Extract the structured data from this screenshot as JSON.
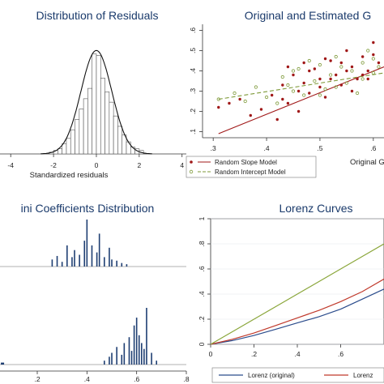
{
  "chart_data": [
    {
      "type": "bar",
      "title": "Distribution of Residuals",
      "xlabel": "Standardized residuals",
      "x_ticks": [
        "-4",
        "-2",
        "0",
        "2",
        "4"
      ],
      "xlim": [
        -4.5,
        4.2
      ],
      "bin_width": 0.2,
      "bin_centers": [
        -2.1,
        -1.9,
        -1.7,
        -1.5,
        -1.3,
        -1.1,
        -0.9,
        -0.7,
        -0.5,
        -0.3,
        -0.1,
        0.1,
        0.3,
        0.5,
        0.7,
        0.9,
        1.1,
        1.3,
        1.5,
        1.7,
        1.9,
        2.1
      ],
      "values": [
        0.01,
        0.02,
        0.03,
        0.06,
        0.09,
        0.14,
        0.2,
        0.26,
        0.32,
        0.38,
        0.58,
        0.57,
        0.44,
        0.36,
        0.3,
        0.22,
        0.16,
        0.11,
        0.07,
        0.04,
        0.03,
        0.02
      ],
      "overlay": "normal density curve (mean 0, sd 0.75)",
      "ylim": [
        0,
        0.62
      ]
    },
    {
      "type": "scatter",
      "title": "Original and Estimated G",
      "xlabel": "Original G",
      "x_ticks": [
        ".3",
        ".4",
        ".5",
        ".6"
      ],
      "y_ticks": [
        ".1",
        ".2",
        ".3",
        ".4",
        ".5",
        ".6"
      ],
      "xlim": [
        0.28,
        0.62
      ],
      "ylim": [
        0.07,
        0.63
      ],
      "series": [
        {
          "name": "Random Slope Model",
          "color": "#a01818",
          "x": [
            0.31,
            0.33,
            0.35,
            0.37,
            0.39,
            0.41,
            0.42,
            0.43,
            0.44,
            0.45,
            0.46,
            0.47,
            0.48,
            0.49,
            0.5,
            0.51,
            0.52,
            0.53,
            0.54,
            0.55,
            0.56,
            0.57,
            0.58,
            0.59,
            0.6,
            0.61,
            0.44,
            0.46,
            0.48,
            0.5,
            0.52,
            0.54,
            0.56,
            0.58,
            0.6,
            0.43,
            0.47,
            0.51,
            0.55,
            0.59
          ],
          "y": [
            0.22,
            0.24,
            0.26,
            0.18,
            0.21,
            0.28,
            0.16,
            0.33,
            0.24,
            0.38,
            0.2,
            0.34,
            0.29,
            0.41,
            0.36,
            0.27,
            0.45,
            0.38,
            0.33,
            0.5,
            0.42,
            0.36,
            0.47,
            0.4,
            0.54,
            0.44,
            0.42,
            0.3,
            0.4,
            0.32,
            0.36,
            0.44,
            0.3,
            0.38,
            0.48,
            0.26,
            0.44,
            0.46,
            0.4,
            0.36
          ]
        },
        {
          "name": "Random Intercept Model",
          "color": "#7f9a3a",
          "x": [
            0.31,
            0.34,
            0.36,
            0.38,
            0.4,
            0.42,
            0.43,
            0.45,
            0.46,
            0.47,
            0.49,
            0.5,
            0.51,
            0.52,
            0.53,
            0.55,
            0.56,
            0.57,
            0.58,
            0.59,
            0.6,
            0.61,
            0.44,
            0.48,
            0.5,
            0.54,
            0.58,
            0.6,
            0.45,
            0.53
          ],
          "y": [
            0.26,
            0.29,
            0.25,
            0.32,
            0.27,
            0.24,
            0.37,
            0.3,
            0.41,
            0.28,
            0.35,
            0.43,
            0.31,
            0.38,
            0.47,
            0.34,
            0.4,
            0.29,
            0.44,
            0.5,
            0.39,
            0.42,
            0.33,
            0.45,
            0.28,
            0.42,
            0.36,
            0.46,
            0.4,
            0.32
          ]
        }
      ],
      "fit_lines": [
        {
          "series": "Random Slope Model",
          "style": "solid",
          "x": [
            0.31,
            0.62
          ],
          "y": [
            0.09,
            0.42
          ]
        },
        {
          "series": "Random Intercept Model",
          "style": "dashed",
          "x": [
            0.31,
            0.62
          ],
          "y": [
            0.26,
            0.39
          ]
        }
      ],
      "legend": [
        "Random Slope Model",
        "Random Intercept Model"
      ],
      "legend_position": "bottom-left"
    },
    {
      "type": "bar",
      "title": "ini Coefficients Distribution",
      "x_ticks": [
        ".2",
        ".4",
        ".6",
        ".8"
      ],
      "xlim": [
        0.05,
        0.8
      ],
      "color": "#1f3f73",
      "panels": [
        {
          "x": [
            0.26,
            0.28,
            0.3,
            0.32,
            0.34,
            0.35,
            0.37,
            0.39,
            0.4,
            0.42,
            0.44,
            0.45,
            0.47,
            0.49,
            0.5,
            0.52,
            0.54,
            0.56
          ],
          "values": [
            6,
            9,
            4,
            18,
            8,
            14,
            10,
            22,
            40,
            18,
            12,
            28,
            8,
            16,
            6,
            5,
            3,
            2
          ]
        },
        {
          "x": [
            0.06,
            0.47,
            0.49,
            0.5,
            0.52,
            0.54,
            0.55,
            0.57,
            0.58,
            0.59,
            0.6,
            0.61,
            0.62,
            0.63,
            0.64,
            0.66,
            0.68
          ],
          "values": [
            2,
            4,
            8,
            12,
            18,
            10,
            22,
            28,
            14,
            40,
            48,
            30,
            22,
            16,
            58,
            12,
            4
          ]
        }
      ]
    },
    {
      "type": "line",
      "title": "Lorenz Curves",
      "x_ticks": [
        "0",
        ".2",
        ".4",
        ".6"
      ],
      "y_ticks": [
        "0",
        ".2",
        ".4",
        ".6",
        ".8",
        "1"
      ],
      "xlim": [
        0,
        0.8
      ],
      "ylim": [
        0,
        1
      ],
      "series": [
        {
          "name": "Lorenz (original)",
          "color": "#2b4c8c",
          "x": [
            0,
            0.1,
            0.2,
            0.3,
            0.4,
            0.5,
            0.6,
            0.7,
            0.8
          ],
          "y": [
            0,
            0.03,
            0.07,
            0.12,
            0.17,
            0.22,
            0.28,
            0.36,
            0.44
          ]
        },
        {
          "color": "#c0392b",
          "x": [
            0,
            0.1,
            0.2,
            0.3,
            0.4,
            0.5,
            0.6,
            0.7,
            0.8
          ],
          "y": [
            0,
            0.04,
            0.09,
            0.15,
            0.21,
            0.27,
            0.34,
            0.42,
            0.52
          ]
        },
        {
          "color": "#8aa63a",
          "x": [
            0,
            0.1,
            0.2,
            0.3,
            0.4,
            0.5,
            0.6,
            0.7,
            0.8
          ],
          "y": [
            0,
            0.1,
            0.2,
            0.3,
            0.4,
            0.5,
            0.6,
            0.7,
            0.8
          ]
        }
      ],
      "legend": [
        "Lorenz (original)",
        "Lorenz"
      ],
      "legend_position": "bottom"
    }
  ]
}
